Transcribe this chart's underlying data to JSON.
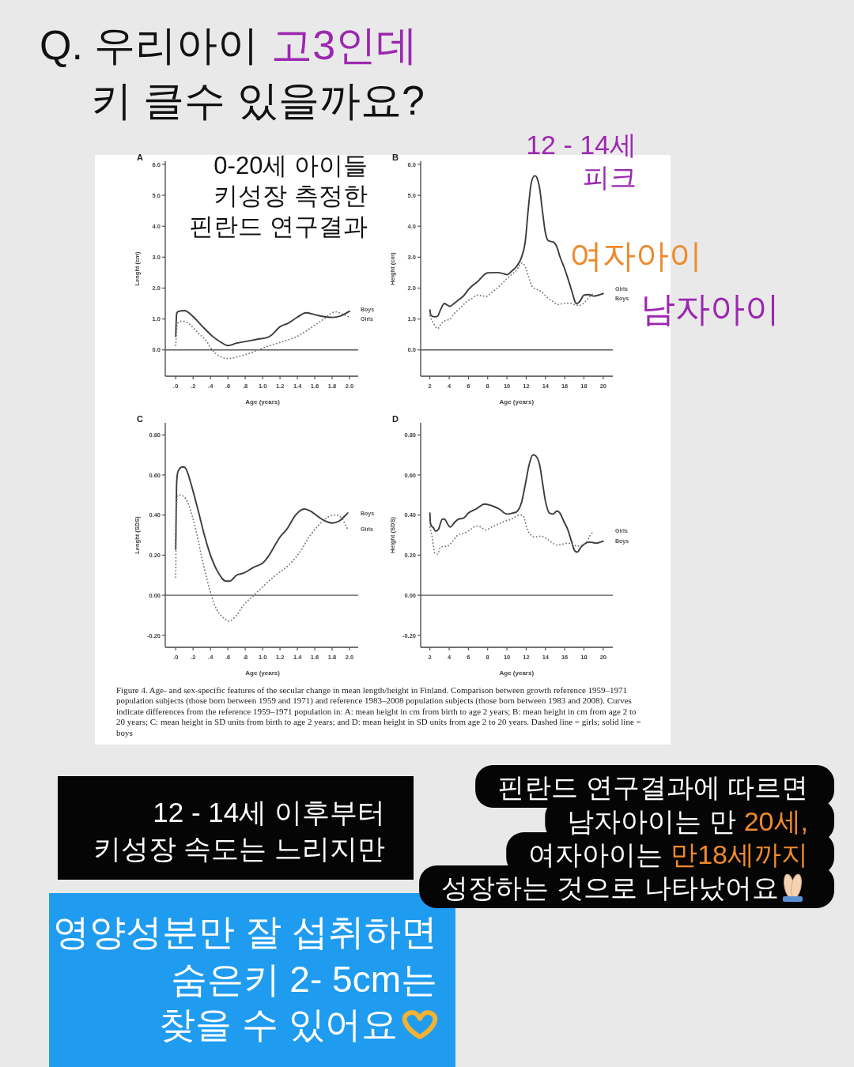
{
  "chart_data": [
    {
      "type": "line",
      "title": "A",
      "xlabel": "Age (years)",
      "ylabel": "Lenght (cm)",
      "xlim": [
        -0.12,
        2.1
      ],
      "ylim": [
        -0.85,
        6.1
      ],
      "xticks": [
        {
          "value": 0,
          "label": ".0"
        },
        {
          "value": 0.2,
          "label": ".2"
        },
        {
          "value": 0.4,
          "label": ".4"
        },
        {
          "value": 0.6,
          "label": ".6"
        },
        {
          "value": 0.8,
          "label": ".8"
        },
        {
          "value": 1,
          "label": "1.0"
        },
        1.2,
        1.4,
        1.6,
        1.8,
        {
          "value": 2,
          "label": "2.0"
        }
      ],
      "yticks": [
        {
          "value": 0,
          "label": "0.0"
        },
        {
          "value": 1,
          "label": "1.0"
        },
        {
          "value": 2,
          "label": "2.0"
        },
        {
          "value": 3,
          "label": "3.0"
        },
        {
          "value": 4,
          "label": "4.0"
        },
        {
          "value": 5,
          "label": "5.0"
        },
        {
          "value": 6,
          "label": "6.0"
        }
      ],
      "ref_lines": [
        {
          "axis": "y",
          "value": 0,
          "color": "#555555"
        }
      ],
      "series": [
        {
          "name": "Boys",
          "color": "#3c3c3c",
          "line_style": "solid",
          "x": [
            0,
            0.01,
            0.03,
            0.1,
            0.2,
            0.3,
            0.42,
            0.52,
            0.6,
            0.7,
            0.8,
            0.95,
            1.05,
            1.1,
            1.2,
            1.3,
            1.4,
            1.5,
            1.6,
            1.7,
            1.8,
            1.9,
            2.0
          ],
          "values": [
            0.44,
            1.15,
            1.24,
            1.27,
            1.08,
            0.78,
            0.45,
            0.25,
            0.14,
            0.22,
            0.27,
            0.35,
            0.4,
            0.47,
            0.75,
            0.87,
            1.06,
            1.2,
            1.14,
            1.08,
            1.05,
            1.1,
            1.25
          ]
        },
        {
          "name": "Girls",
          "color": "#7a7a7a",
          "line_style": "dotted",
          "x": [
            0,
            0.02,
            0.08,
            0.15,
            0.25,
            0.35,
            0.42,
            0.5,
            0.6,
            0.75,
            0.85,
            0.95,
            1.05,
            1.15,
            1.3,
            1.4,
            1.5,
            1.6,
            1.7,
            1.8,
            1.85,
            1.9,
            2.0
          ],
          "values": [
            0.15,
            0.85,
            0.93,
            0.85,
            0.57,
            0.3,
            0.0,
            -0.19,
            -0.28,
            -0.19,
            -0.11,
            0.0,
            0.11,
            0.2,
            0.33,
            0.44,
            0.61,
            0.8,
            0.99,
            1.2,
            1.23,
            1.18,
            1.06
          ]
        }
      ],
      "annotations": [
        "0-20세 아이들",
        "키성장 측정한",
        "핀란드 연구결과"
      ]
    },
    {
      "type": "line",
      "title": "B",
      "xlabel": "Age (years)",
      "ylabel": "Height (cm)",
      "xlim": [
        1.04,
        21
      ],
      "ylim": [
        -0.85,
        6.1
      ],
      "xticks": [
        2,
        4,
        6,
        8,
        10,
        12,
        14,
        16,
        18,
        20
      ],
      "yticks": [
        {
          "value": 0,
          "label": "0.0"
        },
        {
          "value": 1,
          "label": "1.0"
        },
        {
          "value": 2,
          "label": "2.0"
        },
        {
          "value": 3,
          "label": "3.0"
        },
        {
          "value": 4,
          "label": "4.0"
        },
        {
          "value": 5,
          "label": "5.0"
        },
        {
          "value": 6,
          "label": "6.0"
        }
      ],
      "ref_lines": [
        {
          "axis": "y",
          "value": 0,
          "color": "#555555"
        }
      ],
      "series": [
        {
          "name": "Boys",
          "color": "#3c3c3c",
          "line_style": "solid",
          "x": [
            2,
            2.1,
            2.5,
            2.8,
            3.1,
            3.5,
            3.8,
            4.1,
            4.5,
            5,
            5.5,
            6,
            6.5,
            7,
            7.5,
            8,
            9,
            9.7,
            10,
            10.5,
            11,
            11.5,
            11.9,
            12.2,
            12.5,
            12.9,
            13.1,
            13.4,
            13.7,
            14,
            14.3,
            14.8,
            15.2,
            15.5,
            16,
            16.3,
            16.8,
            17.1,
            17.3,
            17.6,
            18,
            18.5,
            19,
            19.5,
            20
          ],
          "values": [
            1.29,
            1.12,
            1.07,
            1.09,
            1.3,
            1.5,
            1.45,
            1.41,
            1.5,
            1.62,
            1.75,
            1.95,
            2.1,
            2.22,
            2.39,
            2.49,
            2.5,
            2.46,
            2.43,
            2.55,
            2.7,
            2.98,
            3.49,
            4.5,
            5.35,
            5.63,
            5.58,
            5.22,
            4.46,
            3.78,
            3.53,
            3.49,
            3.32,
            3.02,
            2.62,
            2.34,
            1.84,
            1.54,
            1.5,
            1.58,
            1.77,
            1.79,
            1.74,
            1.77,
            1.82
          ]
        },
        {
          "name": "Girls",
          "color": "#7a7a7a",
          "line_style": "dotted",
          "x": [
            2,
            2.3,
            2.8,
            3.2,
            3.6,
            4.1,
            4.6,
            5.2,
            5.8,
            6.3,
            6.9,
            7.4,
            7.9,
            8.4,
            9,
            9.5,
            10,
            10.5,
            11,
            11.5,
            11.9,
            12.2,
            12.6,
            13.1,
            13.6,
            14.2,
            14.8,
            15.3,
            16,
            16.6,
            17.1,
            17.6,
            18,
            18.5,
            19
          ],
          "values": [
            1.1,
            0.9,
            0.69,
            0.86,
            0.95,
            1.0,
            1.2,
            1.37,
            1.56,
            1.65,
            1.77,
            1.75,
            1.73,
            1.86,
            2.0,
            2.15,
            2.3,
            2.44,
            2.58,
            2.81,
            2.7,
            2.41,
            2.07,
            1.96,
            1.88,
            1.69,
            1.56,
            1.47,
            1.51,
            1.51,
            1.46,
            1.44,
            1.52,
            1.69,
            1.84
          ]
        }
      ],
      "annotations": [
        "12 - 14세",
        "피크",
        "여자아이",
        "남자아이"
      ]
    },
    {
      "type": "line",
      "title": "C",
      "xlabel": "Age (years)",
      "ylabel": "Lenght (SDS)",
      "xlim": [
        -0.12,
        2.1
      ],
      "ylim": [
        -0.26,
        0.86
      ],
      "xticks": [
        {
          "value": 0,
          "label": ".0"
        },
        {
          "value": 0.2,
          "label": ".2"
        },
        {
          "value": 0.4,
          "label": ".4"
        },
        {
          "value": 0.6,
          "label": ".6"
        },
        {
          "value": 0.8,
          "label": ".8"
        },
        {
          "value": 1,
          "label": "1.0"
        },
        1.2,
        1.4,
        1.6,
        1.8,
        {
          "value": 2,
          "label": "2.0"
        }
      ],
      "yticks": [
        {
          "value": -0.2,
          "label": "-0.20"
        },
        {
          "value": 0,
          "label": "0.00"
        },
        {
          "value": 0.2,
          "label": "0.20"
        },
        {
          "value": 0.4,
          "label": "0.40"
        },
        {
          "value": 0.6,
          "label": "0.60"
        },
        {
          "value": 0.8,
          "label": "0.80"
        }
      ],
      "ref_lines": [
        {
          "axis": "y",
          "value": 0,
          "color": "#555555"
        }
      ],
      "series": [
        {
          "name": "Boys",
          "color": "#3c3c3c",
          "line_style": "solid",
          "x": [
            0,
            0.01,
            0.03,
            0.09,
            0.12,
            0.18,
            0.26,
            0.33,
            0.4,
            0.48,
            0.58,
            0.62,
            0.7,
            0.78,
            0.9,
            1.0,
            1.06,
            1.2,
            1.28,
            1.38,
            1.48,
            1.55,
            1.68,
            1.8,
            1.88,
            1.98
          ],
          "values": [
            0.23,
            0.55,
            0.62,
            0.64,
            0.63,
            0.55,
            0.42,
            0.3,
            0.2,
            0.12,
            0.07,
            0.07,
            0.1,
            0.11,
            0.14,
            0.16,
            0.19,
            0.29,
            0.33,
            0.4,
            0.43,
            0.42,
            0.38,
            0.36,
            0.37,
            0.41
          ]
        },
        {
          "name": "Girls",
          "color": "#7a7a7a",
          "line_style": "dotted",
          "x": [
            0,
            0.01,
            0.03,
            0.1,
            0.15,
            0.23,
            0.32,
            0.41,
            0.47,
            0.57,
            0.61,
            0.7,
            0.78,
            0.9,
            1.02,
            1.15,
            1.3,
            1.42,
            1.55,
            1.72,
            1.82,
            1.9,
            1.98
          ],
          "values": [
            0.09,
            0.45,
            0.5,
            0.49,
            0.45,
            0.33,
            0.15,
            0.0,
            -0.07,
            -0.12,
            -0.13,
            -0.1,
            -0.05,
            0.0,
            0.05,
            0.1,
            0.15,
            0.21,
            0.3,
            0.38,
            0.4,
            0.39,
            0.33
          ]
        }
      ]
    },
    {
      "type": "line",
      "title": "D",
      "xlabel": "Age (years)",
      "ylabel": "Height (SDS)",
      "xlim": [
        1.04,
        21
      ],
      "ylim": [
        -0.26,
        0.86
      ],
      "xticks": [
        2,
        4,
        6,
        8,
        10,
        12,
        14,
        16,
        18,
        20
      ],
      "yticks": [
        {
          "value": -0.2,
          "label": "-0.20"
        },
        {
          "value": 0,
          "label": "0.00"
        },
        {
          "value": 0.2,
          "label": "0.20"
        },
        {
          "value": 0.4,
          "label": "0.40"
        },
        {
          "value": 0.6,
          "label": "0.60"
        },
        {
          "value": 0.8,
          "label": "0.80"
        }
      ],
      "ref_lines": [
        {
          "axis": "y",
          "value": 0,
          "color": "#555555"
        }
      ],
      "series": [
        {
          "name": "Boys",
          "color": "#3c3c3c",
          "line_style": "solid",
          "x": [
            2,
            2.05,
            2.3,
            2.6,
            2.9,
            3.3,
            3.5,
            3.9,
            4.1,
            4.6,
            5,
            5.5,
            6,
            6.8,
            7.7,
            8.5,
            9.2,
            10,
            10.6,
            11.1,
            11.5,
            11.9,
            12.3,
            12.7,
            13,
            13.4,
            13.7,
            14,
            14.4,
            14.8,
            15.2,
            15.5,
            15.9,
            16.3,
            16.7,
            17,
            17.3,
            17.7,
            18.2,
            18.6,
            19.3,
            19.7,
            20
          ],
          "values": [
            0.41,
            0.36,
            0.34,
            0.32,
            0.33,
            0.38,
            0.38,
            0.35,
            0.34,
            0.365,
            0.38,
            0.385,
            0.41,
            0.43,
            0.455,
            0.445,
            0.43,
            0.405,
            0.41,
            0.42,
            0.46,
            0.55,
            0.65,
            0.7,
            0.695,
            0.65,
            0.56,
            0.47,
            0.41,
            0.405,
            0.42,
            0.41,
            0.37,
            0.33,
            0.27,
            0.225,
            0.215,
            0.24,
            0.26,
            0.265,
            0.26,
            0.265,
            0.27
          ]
        },
        {
          "name": "Girls",
          "color": "#7a7a7a",
          "line_style": "dotted",
          "x": [
            2,
            2.2,
            2.5,
            2.8,
            3.1,
            3.8,
            4.2,
            4.9,
            5.6,
            6.3,
            6.8,
            7.3,
            7.8,
            8.4,
            9.1,
            9.8,
            10.5,
            11,
            11.3,
            11.7,
            12.1,
            12.5,
            12.9,
            13.5,
            14,
            14.6,
            15.2,
            15.8,
            16.3,
            16.8,
            17.3,
            17.8,
            18.2,
            18.6,
            19
          ],
          "values": [
            0.34,
            0.3,
            0.21,
            0.205,
            0.24,
            0.245,
            0.26,
            0.3,
            0.31,
            0.33,
            0.345,
            0.34,
            0.325,
            0.34,
            0.355,
            0.37,
            0.38,
            0.395,
            0.4,
            0.395,
            0.33,
            0.3,
            0.29,
            0.295,
            0.285,
            0.265,
            0.25,
            0.255,
            0.26,
            0.255,
            0.245,
            0.25,
            0.26,
            0.295,
            0.32
          ]
        }
      ]
    },
    {
      "type": "other",
      "annotations": [
        "Q. 우리아이",
        "고3인데",
        "키 클수 있을까요?",
        "Figure 4. Age- and sex-specific features of the secular change in mean length/height in Finland. Comparison between growth reference 1959–1971 population subjects (those born between 1959 and 1971) and reference 1983–2008 population subjects (those born between 1983 and 2008). Curves indicate differences from the reference 1959–1971 population in: A: mean height in cm from birth to age 2 years; B: mean height in cm from age 2 to 20 years; C: mean height in SD units from birth to age 2 years; and D: mean height in SD units from age 2 to 20 years. Dashed line = girls; solid line = boys",
        "12 - 14세 이후부터",
        "키성장 속도는 느리지만",
        "영양성분만 잘 섭취하면",
        "숨은키 2- 5cm는",
        "찾을 수 있어요",
        "핀란드 연구결과에 따르면",
        "남자아이는 만",
        "20세,",
        "여자아이는",
        "만18세까지",
        "성장하는 것으로 나타났어요"
      ]
    }
  ]
}
